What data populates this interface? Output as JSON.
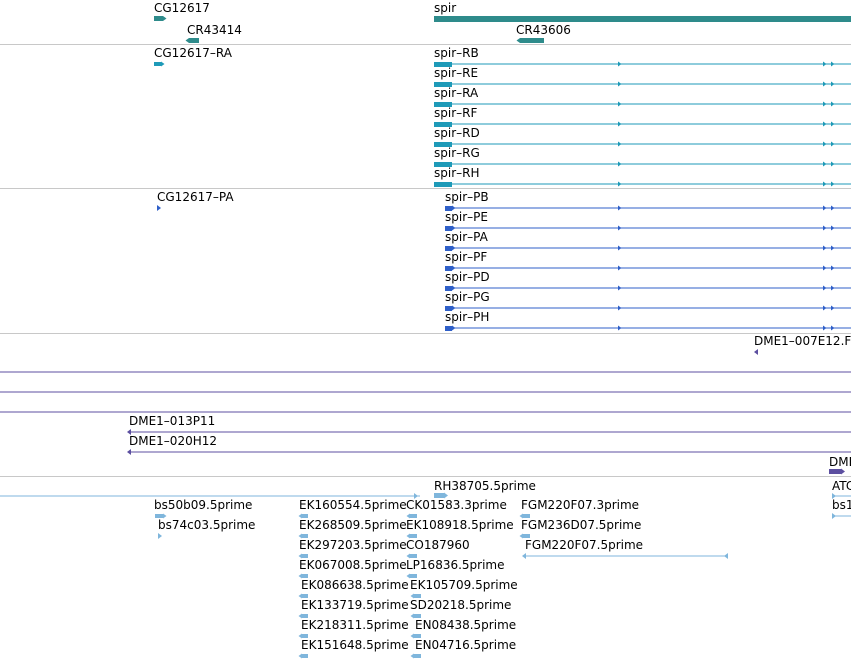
{
  "colors": {
    "gene": "#2e8b8b",
    "transcript": "#1e9ab8",
    "protein": "#2f5fc8",
    "clone": "#5c4fa0",
    "est": "#7fb6dc",
    "separator": "#c8c8c8"
  },
  "tracks": {
    "genes": {
      "labels": [
        "CG12617",
        "CR43414",
        "spir",
        "CR43606"
      ]
    },
    "transcripts": {
      "labels": [
        "CG12617–RA",
        "spir–RB",
        "spir–RE",
        "spir–RA",
        "spir–RF",
        "spir–RD",
        "spir–RG",
        "spir–RH"
      ]
    },
    "proteins": {
      "labels": [
        "CG12617–PA",
        "spir–PB",
        "spir–PE",
        "spir–PA",
        "spir–PF",
        "spir–PD",
        "spir–PG",
        "spir–PH"
      ]
    },
    "clones": {
      "labels": [
        "DME1–007E12.F",
        "DME1–013P11",
        "DME1–020H12",
        "DME"
      ]
    },
    "ests": {
      "labels": [
        "RH38705.5prime",
        "bs50b09.5prime",
        "bs74c03.5prime",
        "EK160554.5prime",
        "EK268509.5prime",
        "EK297203.5prime",
        "EK067008.5prime",
        "EK086638.5prime",
        "EK133719.5prime",
        "EK218311.5prime",
        "EK151648.5prime",
        "CK01583.3prime",
        "EK108918.5prime",
        "CO187960",
        "LP16836.5prime",
        "EK105709.5prime",
        "SD20218.5prime",
        "EN08438.5prime",
        "EN04716.5prime",
        "FGM220F07.3prime",
        "FGM236D07.5prime",
        "FGM220F07.5prime",
        "ATC",
        "bs1"
      ]
    }
  }
}
